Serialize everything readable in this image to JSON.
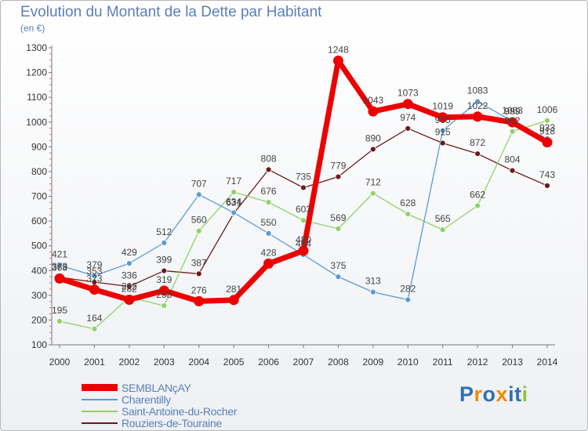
{
  "title": "Evolution du Montant de la Dette par Habitant",
  "unit": "(en €)",
  "brand": "Proxiti",
  "chart_data": {
    "type": "line",
    "title": "Evolution du Montant de la Dette par Habitant",
    "ylabel": "(en €)",
    "x": [
      "2000",
      "2001",
      "2002",
      "2003",
      "2004",
      "2005",
      "2006",
      "2007",
      "2008",
      "2009",
      "2010",
      "2011",
      "2012",
      "2013",
      "2014"
    ],
    "ylim": [
      100,
      1300
    ],
    "yticks": [
      100,
      200,
      300,
      400,
      500,
      600,
      700,
      800,
      900,
      1000,
      1100,
      1200,
      1300
    ],
    "grid": false,
    "legend_position": "bottom-left",
    "series": [
      {
        "name": "Rouziers-de-Touraine",
        "color": "#6b1a1a",
        "values": [
          373,
          353,
          336,
          399,
          387,
          631,
          808,
          735,
          779,
          890,
          974,
          915,
          872,
          804,
          743
        ]
      },
      {
        "name": "Saint-Antoine-du-Rocher",
        "color": "#8fd16a",
        "values": [
          195,
          164,
          292,
          258,
          560,
          717,
          676,
          603,
          569,
          712,
          628,
          565,
          662,
          962,
          1006
        ]
      },
      {
        "name": "Charentilly",
        "color": "#5b9bd5",
        "values": [
          421,
          379,
          429,
          512,
          707,
          634,
          550,
          464,
          375,
          313,
          282,
          965,
          1083,
          1003,
          933
        ]
      },
      {
        "name": "SEMBLANçAY",
        "color": "#ee0000",
        "values": [
          368,
          323,
          282,
          319,
          276,
          281,
          428,
          480,
          1248,
          1043,
          1073,
          1019,
          1022,
          999,
          918
        ]
      }
    ]
  }
}
